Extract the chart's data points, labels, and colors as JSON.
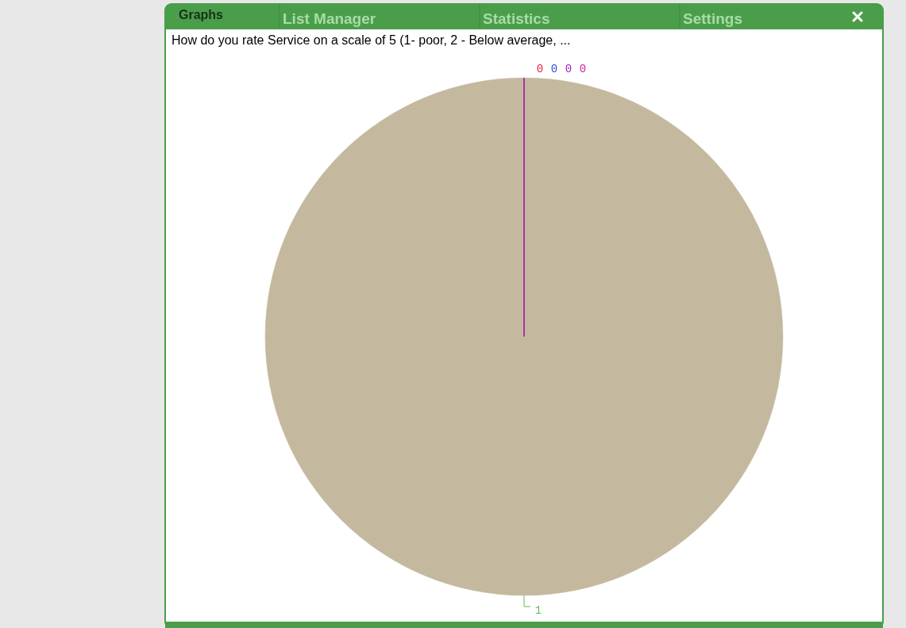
{
  "chart_data": {
    "type": "pie",
    "title": "How do you rate Service on a scale of 5 (1- poor, 2 - Below average, ...",
    "annotations": [
      "Graphs",
      "List Manager",
      "Statistics",
      "Settings"
    ],
    "categories": [
      null,
      null,
      null,
      null,
      null
    ],
    "values": [
      1,
      0,
      0,
      0,
      0
    ],
    "colors": [
      "#c4b99e",
      "#e02040",
      "#3050d0",
      "#a020c0",
      "#d020a0"
    ],
    "value_labels": [
      "1",
      "0",
      "0",
      "0",
      "0"
    ]
  }
}
